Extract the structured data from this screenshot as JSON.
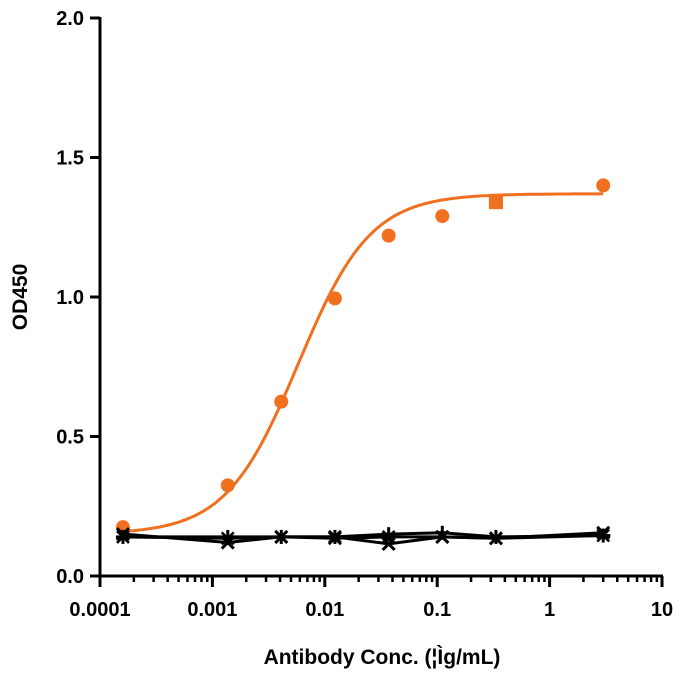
{
  "chart_data": {
    "type": "scatter",
    "title": "",
    "xlabel": "Antibody Conc. (¦Ìg/mL)",
    "ylabel": "OD450",
    "xscale": "log",
    "xlim": [
      0.0001,
      10
    ],
    "ylim": [
      0,
      2.0
    ],
    "xticks": [
      {
        "value": 0.0001,
        "label": "0.0001"
      },
      {
        "value": 0.001,
        "label": "0.001"
      },
      {
        "value": 0.01,
        "label": "0.01"
      },
      {
        "value": 0.1,
        "label": "0.1"
      },
      {
        "value": 1,
        "label": "1"
      },
      {
        "value": 10,
        "label": "10"
      }
    ],
    "yticks": [
      {
        "value": 0.0,
        "label": "0.0"
      },
      {
        "value": 0.5,
        "label": "0.5"
      },
      {
        "value": 1.0,
        "label": "1.0"
      },
      {
        "value": 1.5,
        "label": "1.5"
      },
      {
        "value": 2.0,
        "label": "2.0"
      }
    ],
    "grid": false,
    "legend": "none",
    "series": [
      {
        "color": "#F07020",
        "marker": "circle",
        "x": [
          0.00016,
          0.00137,
          0.0041,
          0.0123,
          0.037,
          0.111,
          0.333,
          3.0
        ],
        "y": [
          0.175,
          0.325,
          0.625,
          0.995,
          1.22,
          1.29,
          1.34,
          1.4
        ],
        "fit": {
          "model": "4PL",
          "bottom": 0.15,
          "top": 1.37,
          "ec50": 0.0058,
          "hill": 1.35
        }
      },
      {
        "color": "#000000",
        "marker": "cross",
        "x": [
          0.00016,
          0.00137,
          0.0041,
          0.0123,
          0.037,
          0.111,
          0.333,
          3.0
        ],
        "y": [
          0.15,
          0.12,
          0.14,
          0.14,
          0.115,
          0.14,
          0.135,
          0.155
        ]
      },
      {
        "color": "#000000",
        "marker": "plus",
        "x": [
          0.00016,
          0.00137,
          0.0041,
          0.0123,
          0.037,
          0.111,
          0.333,
          3.0
        ],
        "y": [
          0.14,
          0.14,
          0.14,
          0.14,
          0.15,
          0.155,
          0.14,
          0.145
        ]
      },
      {
        "color": "#000000",
        "marker": "asterisk",
        "x": [
          0.00016,
          0.00137,
          0.0041,
          0.0123,
          0.037,
          0.111,
          0.333,
          3.0
        ],
        "y": [
          0.14,
          0.135,
          0.14,
          0.135,
          0.14,
          0.14,
          0.135,
          0.145
        ]
      }
    ]
  }
}
